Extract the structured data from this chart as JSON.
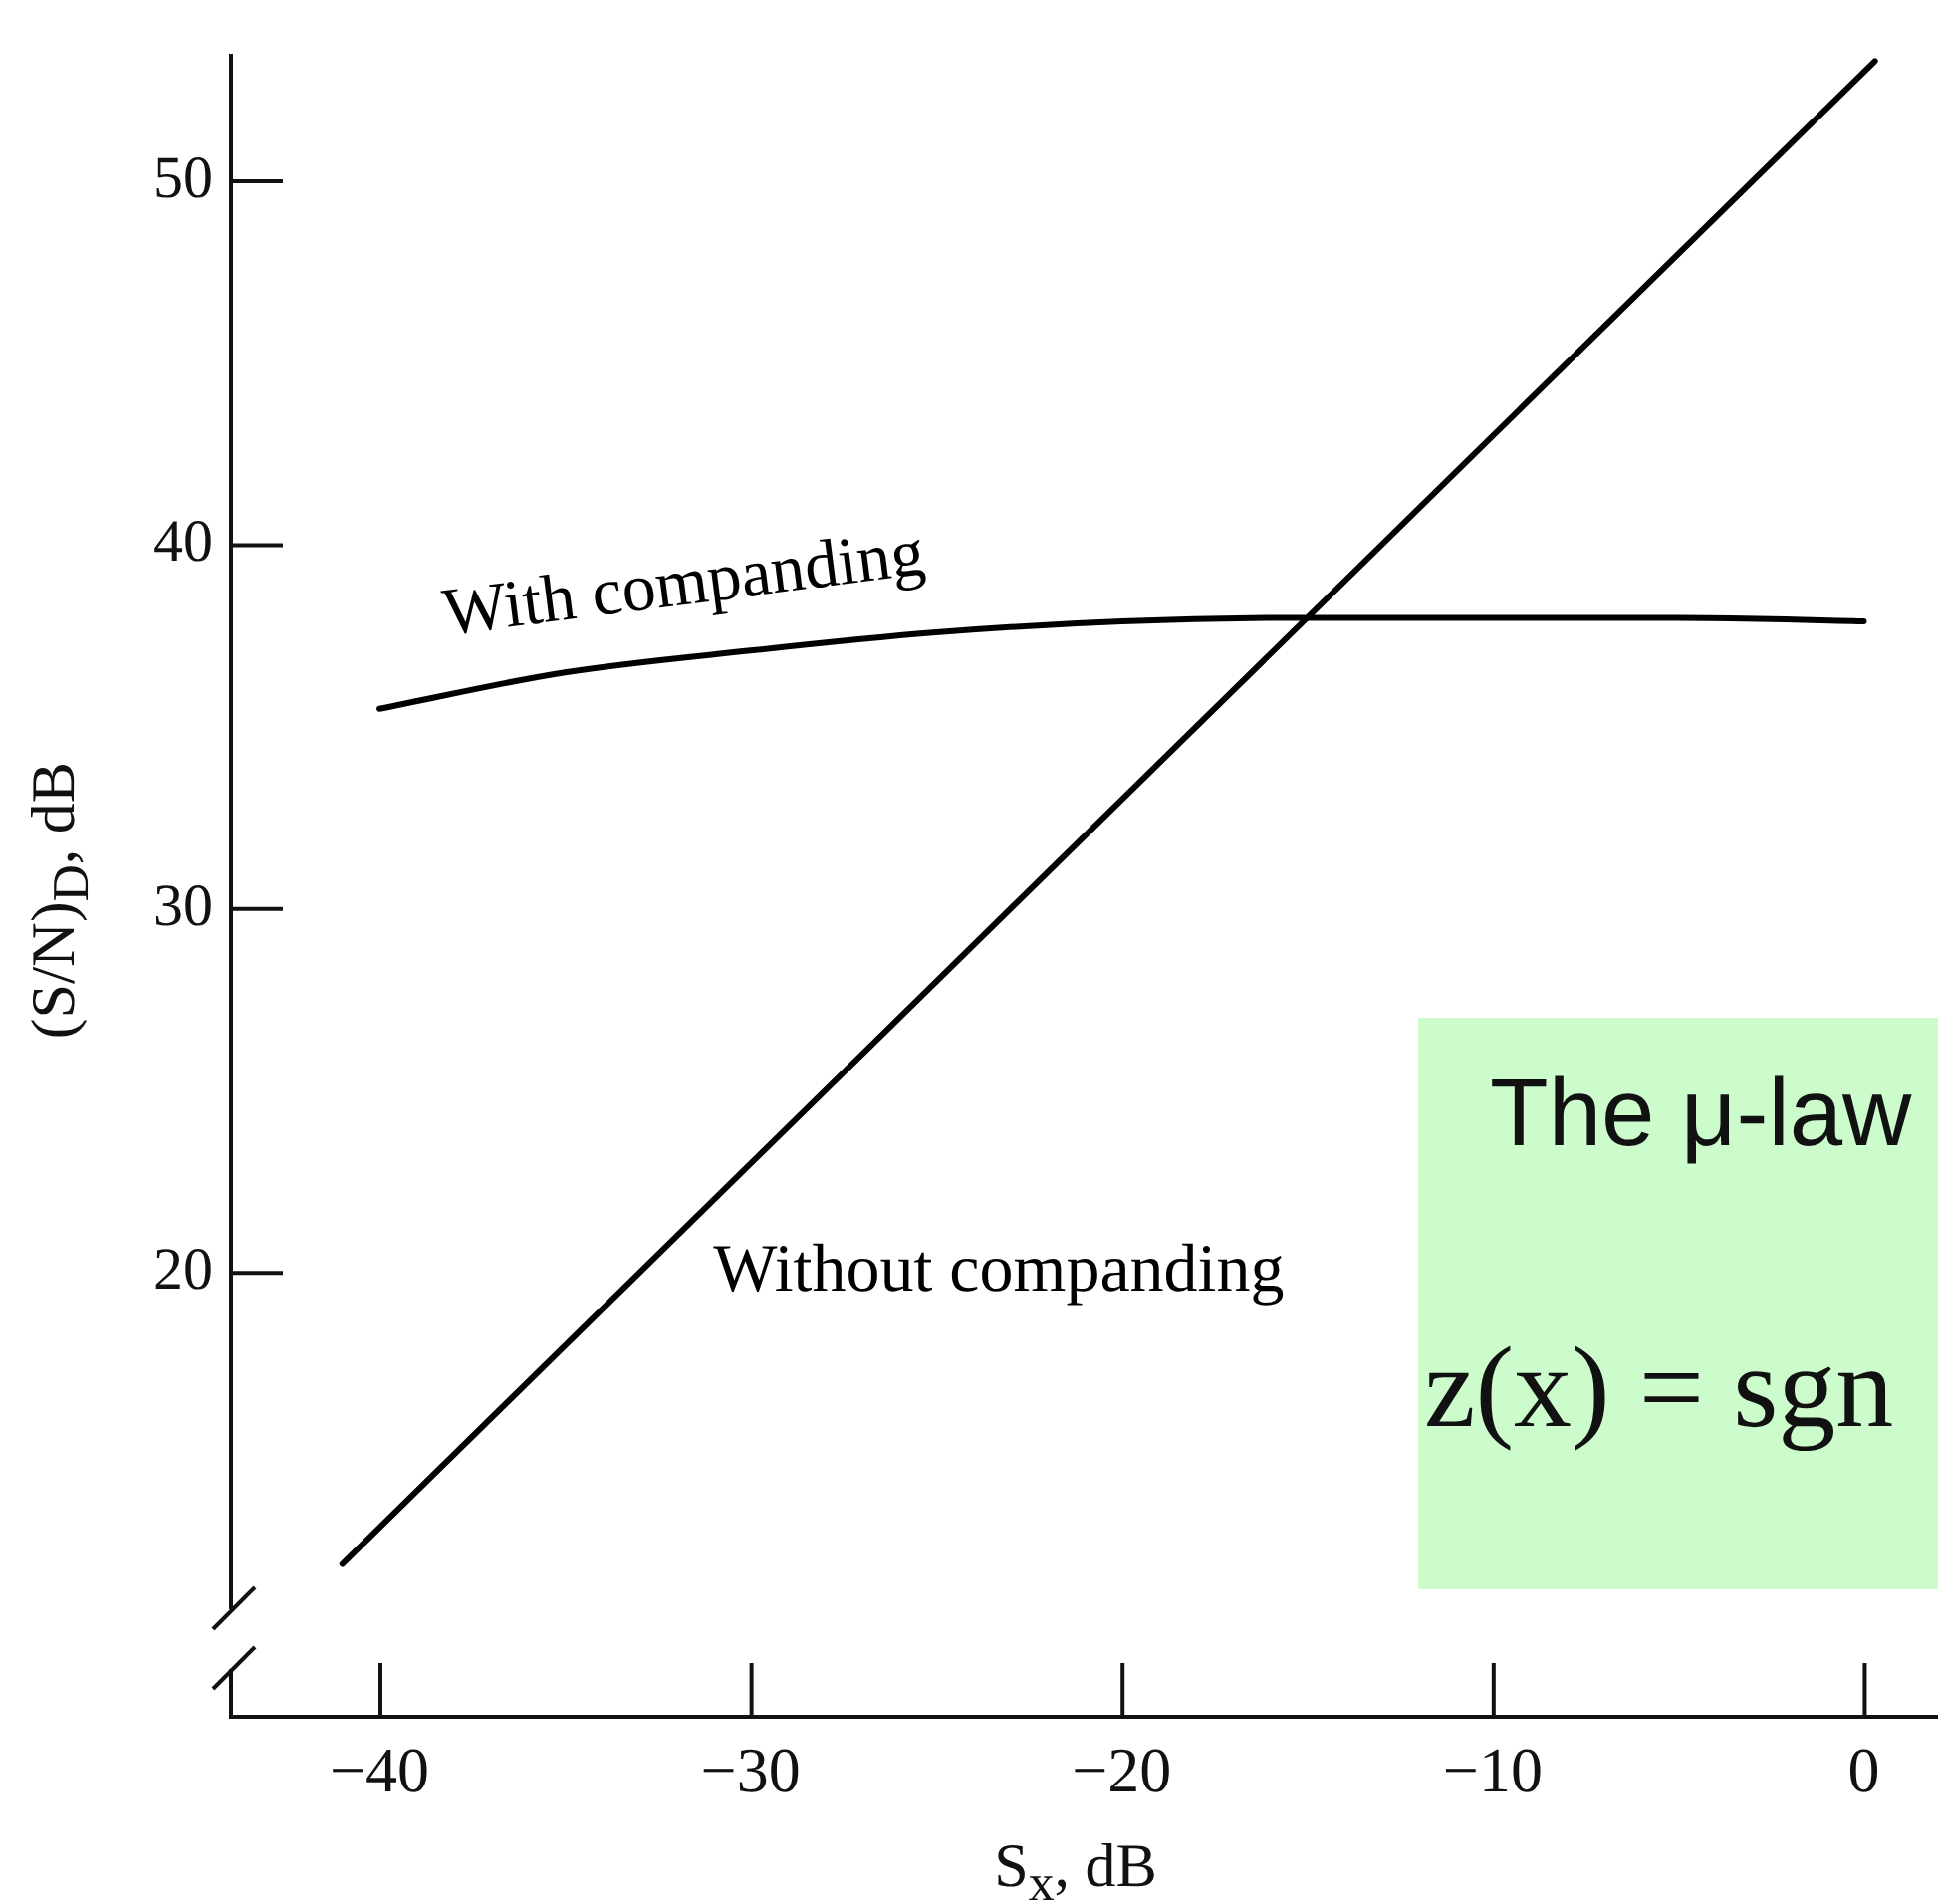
{
  "chart_data": {
    "type": "line",
    "xlabel": "S$_{x}$, dB",
    "ylabel": "(S/N)$_{D}$, dB",
    "series": [
      {
        "name": "With companding",
        "color": "#000000",
        "x": [
          -40,
          -35,
          -30,
          -25,
          -20,
          -15,
          -10,
          -5,
          0
        ],
        "values": [
          35.5,
          36.5,
          37.1,
          37.6,
          37.9,
          38.0,
          38.0,
          38.0,
          37.9
        ]
      },
      {
        "name": "Without companding",
        "color": "#000000",
        "x": [
          -41,
          0.3
        ],
        "values": [
          12,
          53.3
        ]
      }
    ],
    "xlim": [
      -44,
      2
    ],
    "ylim": [
      7.8,
      53.5
    ],
    "xticks": [
      {
        "value": -40,
        "label": "−40"
      },
      {
        "value": -30,
        "label": "−30"
      },
      {
        "value": -20,
        "label": "−20"
      },
      {
        "value": -10,
        "label": "−10"
      },
      0
    ],
    "yticks": [
      20,
      30,
      40,
      50
    ],
    "marker": "none",
    "annotations": [
      "The μ-law",
      "z(x) = sgn"
    ]
  }
}
